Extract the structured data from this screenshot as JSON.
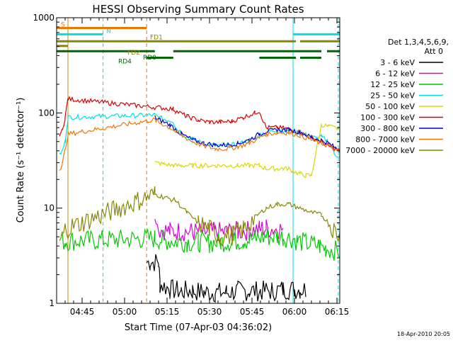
{
  "chart_data": {
    "type": "line",
    "title": "HESSI Observing Summary Count Rates",
    "xlabel": "Start Time (07-Apr-03 04:36:02)",
    "ylabel": "Count Rate (s⁻¹ detector⁻¹)",
    "y_scale": "log",
    "ylim": [
      1,
      1000
    ],
    "xlim_minutes": [
      0,
      100
    ],
    "x_tick_labels": [
      "04:45",
      "05:00",
      "05:15",
      "05:30",
      "05:45",
      "06:00",
      "06:15"
    ],
    "x_tick_minutes": [
      9,
      24,
      39,
      54,
      69,
      84,
      99
    ],
    "y_tick_labels": [
      "1",
      "10",
      "100",
      "1000"
    ],
    "y_tick_values": [
      1,
      10,
      100,
      1000
    ],
    "legend_title": [
      "Det 1,3,4,5,6,9,",
      "Att 0"
    ],
    "legend_position": "right",
    "footer": "18-Apr-2010 20:05",
    "series": [
      {
        "name": "3 - 6 keV",
        "color": "#000000",
        "x": [
          31.8,
          33,
          36,
          36.5,
          40,
          44,
          48,
          52,
          56,
          60,
          64,
          68,
          72,
          76,
          80,
          84,
          86,
          88
        ],
        "y": [
          2.7,
          2.7,
          2.7,
          1.6,
          1.4,
          1.35,
          1.35,
          1.3,
          1.3,
          1.3,
          1.35,
          1.35,
          1.35,
          1.35,
          1.4,
          1.4,
          1.4,
          1.4
        ]
      },
      {
        "name": "6 - 12 keV",
        "color": "#dd00dd",
        "x": [
          34.7,
          36,
          40,
          44,
          48,
          52,
          56,
          60,
          64,
          68,
          71.6,
          74,
          78,
          80
        ],
        "y": [
          8.0,
          6.0,
          5.7,
          5.7,
          5.6,
          5.6,
          5.6,
          5.6,
          5.7,
          5.8,
          6.0,
          6.2,
          6.0,
          6.0
        ]
      },
      {
        "name": "12 - 25 keV",
        "color": "#00cc00",
        "x": [
          2,
          3,
          34.7,
          38,
          42,
          46,
          50,
          54,
          58,
          62,
          66,
          70,
          74,
          78,
          80,
          83.5,
          85,
          93,
          95,
          100
        ],
        "y": [
          4.5,
          4.5,
          4.8,
          4.6,
          4.5,
          4.4,
          4.4,
          4.3,
          4.4,
          4.5,
          4.6,
          4.8,
          5.0,
          5.0,
          5.0,
          4.8,
          4.5,
          4.0,
          3.8,
          3.5
        ]
      },
      {
        "name": "25 - 50 keV",
        "color": "#00e0e0",
        "x": [
          1,
          2,
          3,
          4,
          34.7,
          36,
          38,
          41.2,
          42,
          46,
          50,
          54,
          58,
          62,
          66,
          70,
          71.6,
          72,
          75,
          78,
          82,
          86,
          90,
          92,
          93.5,
          96,
          98,
          100
        ],
        "y": [
          36,
          40,
          50,
          90,
          95,
          90,
          86,
          82,
          70,
          56,
          50,
          46,
          45,
          46,
          49,
          54,
          56,
          60,
          64,
          66,
          66,
          62,
          56,
          54,
          56,
          50,
          38,
          34
        ]
      },
      {
        "name": "50 - 100 keV",
        "color": "#d8d800",
        "x": [
          34.7,
          38,
          41.2,
          44,
          48,
          52,
          56,
          60,
          64,
          68,
          71.6,
          74,
          78,
          80,
          82,
          84,
          86,
          88,
          90,
          93.5,
          96,
          100
        ],
        "y": [
          30,
          29,
          28,
          28,
          28,
          28,
          28,
          28,
          28,
          28,
          28,
          26,
          26,
          26,
          26,
          24,
          23,
          22,
          22,
          75,
          72,
          68
        ]
      },
      {
        "name": "100 - 300 keV",
        "color": "#dd0000",
        "x": [
          1,
          2,
          3,
          4,
          41.2,
          42,
          46,
          50,
          54,
          58,
          62,
          66,
          70,
          71.6,
          74,
          78,
          82,
          86,
          90,
          93.5,
          96,
          100
        ],
        "y": [
          60,
          65,
          90,
          140,
          110,
          105,
          92,
          84,
          80,
          80,
          82,
          90,
          100,
          105,
          70,
          70,
          68,
          62,
          55,
          50,
          45,
          40
        ]
      },
      {
        "name": "300 - 800 keV",
        "color": "#0000dd",
        "x": [
          34.7,
          36,
          40,
          44,
          48,
          52,
          56,
          60,
          64,
          68,
          71.6,
          74,
          78,
          82,
          86,
          90,
          93.5,
          96,
          100
        ],
        "y": [
          90,
          85,
          75,
          60,
          52,
          48,
          46,
          46,
          48,
          52,
          60,
          64,
          66,
          66,
          63,
          55,
          52,
          48,
          40
        ]
      },
      {
        "name": "800 - 7000 keV",
        "color": "#ee7700",
        "x": [
          1,
          2,
          3,
          4,
          34.7,
          36,
          40,
          44,
          48,
          52,
          56,
          60,
          64,
          68,
          71.6,
          74,
          78,
          82,
          86,
          90,
          93.5,
          96,
          100
        ],
        "y": [
          25,
          30,
          40,
          60,
          85,
          80,
          70,
          58,
          50,
          45,
          42,
          42,
          44,
          48,
          55,
          60,
          62,
          62,
          58,
          52,
          48,
          45,
          38
        ]
      },
      {
        "name": "7000 - 20000 keV",
        "color": "#888800",
        "x": [
          1,
          2,
          3,
          34.7,
          38,
          42,
          46,
          50,
          54,
          58,
          62,
          66,
          70,
          74,
          78,
          82,
          86,
          90,
          93.5,
          96,
          98,
          100
        ],
        "y": [
          4.5,
          5,
          6,
          14,
          13,
          12,
          9,
          7,
          6,
          5,
          5.2,
          6,
          8,
          10,
          11,
          11,
          10,
          9,
          8.5,
          7,
          6,
          5
        ]
      }
    ],
    "vertical_lines": [
      {
        "x": 0.0,
        "color": "#00e0e0",
        "style": "solid"
      },
      {
        "x": 4.0,
        "color": "#cc8800",
        "style": "solid"
      },
      {
        "x": 16.4,
        "color": "#00e0e0",
        "style": "dashed"
      },
      {
        "x": 31.8,
        "color": "#ee7700",
        "style": "dashed"
      },
      {
        "x": 83.5,
        "color": "#00e0e0",
        "style": "solid"
      },
      {
        "x": 99.5,
        "color": "#00e0e0",
        "style": "dashed"
      }
    ],
    "flag_bars": [
      {
        "label": "S",
        "color": "#ee7700",
        "y": 780,
        "segments": [
          [
            0,
            31.8
          ]
        ]
      },
      {
        "label": "N",
        "color": "#00e0e0",
        "y": 670,
        "segments": [
          [
            0,
            16.4
          ],
          [
            83.5,
            100
          ]
        ]
      },
      {
        "label": "FD1",
        "color": "#888800",
        "y": 565,
        "segments": [
          [
            0,
            84.5
          ],
          [
            86,
            100
          ]
        ]
      },
      {
        "label": "FD2",
        "color": "#888800",
        "y": 505,
        "segments": [
          [
            0,
            4
          ]
        ]
      },
      {
        "label": "RD0",
        "color": "#006600",
        "y": 445,
        "segments": [
          [
            0,
            34.7
          ],
          [
            41.2,
            93.5
          ],
          [
            95.5,
            100
          ]
        ]
      },
      {
        "label": "RD4",
        "color": "#006600",
        "y": 380,
        "segments": [
          [
            31.8,
            41.2
          ],
          [
            71.6,
            84.5
          ],
          [
            86,
            93.5
          ]
        ]
      }
    ]
  }
}
